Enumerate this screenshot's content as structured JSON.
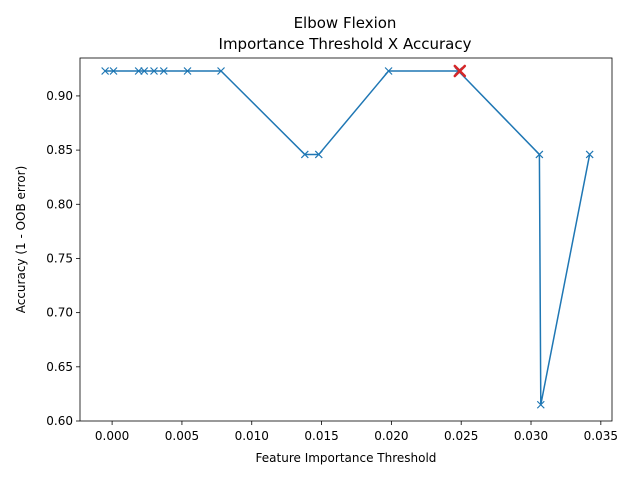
{
  "chart_data": {
    "type": "line",
    "title": "Elbow Flexion",
    "subtitle": "Importance Threshold X Accuracy",
    "xlabel": "Feature Importance Threshold",
    "ylabel": "Accuracy (1 - OOB error)",
    "xlim": [
      -0.0023,
      0.0358
    ],
    "ylim": [
      0.6,
      0.935
    ],
    "x_ticks": [
      0.0,
      0.005,
      0.01,
      0.015,
      0.02,
      0.025,
      0.03,
      0.035
    ],
    "x_tick_labels": [
      "0.000",
      "0.005",
      "0.010",
      "0.015",
      "0.020",
      "0.025",
      "0.030",
      "0.035"
    ],
    "y_ticks": [
      0.6,
      0.65,
      0.7,
      0.75,
      0.8,
      0.85,
      0.9
    ],
    "y_tick_labels": [
      "0.60",
      "0.65",
      "0.70",
      "0.75",
      "0.80",
      "0.85",
      "0.90"
    ],
    "grid": false,
    "series": [
      {
        "color": "#1f77b4",
        "marker": "x",
        "x": [
          -0.0005,
          0.0001,
          0.0019,
          0.0023,
          0.003,
          0.0037,
          0.0054,
          0.0078,
          0.0138,
          0.0148,
          0.0198,
          0.0248,
          0.0306,
          0.0307,
          0.0342
        ],
        "y": [
          0.923,
          0.923,
          0.923,
          0.923,
          0.923,
          0.923,
          0.923,
          0.923,
          0.846,
          0.846,
          0.923,
          0.923,
          0.846,
          0.615,
          0.846
        ]
      }
    ],
    "highlight": {
      "x": 0.0249,
      "y": 0.923,
      "color": "#d62728",
      "marker": "x"
    }
  }
}
